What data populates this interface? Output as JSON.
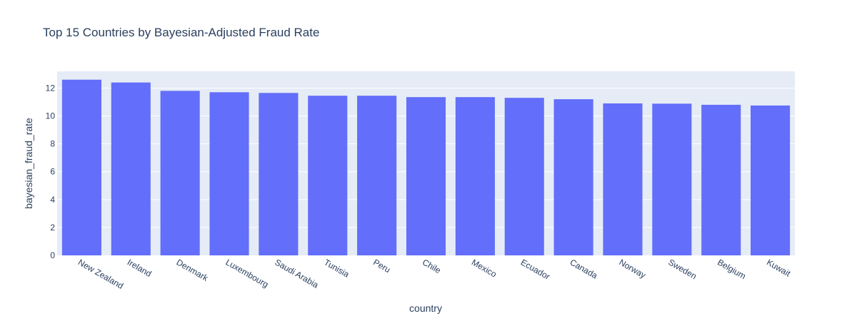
{
  "chart_data": {
    "type": "bar",
    "title": "Top 15 Countries by Bayesian-Adjusted Fraud Rate",
    "xlabel": "country",
    "ylabel": "bayesian_fraud_rate",
    "categories": [
      "New Zealand",
      "Ireland",
      "Denmark",
      "Luxembourg",
      "Saudi Arabia",
      "Tunisia",
      "Peru",
      "Chile",
      "Mexico",
      "Ecuador",
      "Canada",
      "Norway",
      "Sweden",
      "Belgium",
      "Kuwait"
    ],
    "values": [
      12.6,
      12.4,
      11.8,
      11.7,
      11.65,
      11.45,
      11.45,
      11.35,
      11.35,
      11.3,
      11.2,
      10.9,
      10.88,
      10.8,
      10.75
    ],
    "ylim": [
      0,
      13.2
    ],
    "yticks": [
      0,
      2,
      4,
      6,
      8,
      10,
      12
    ],
    "grid": true,
    "colors": {
      "bar": "#636efa",
      "plot_bg": "#e5ecf6",
      "grid": "#ffffff",
      "text": "#2a3f5f"
    }
  }
}
